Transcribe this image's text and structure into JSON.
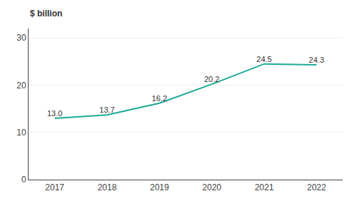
{
  "chart_data": {
    "type": "line",
    "ylabel": "$ billion",
    "x": [
      2017,
      2018,
      2019,
      2020,
      2021,
      2022
    ],
    "values": [
      13.0,
      13.7,
      16.2,
      20.2,
      24.5,
      24.3
    ],
    "value_labels": [
      "13.0",
      "13.7",
      "16.2",
      "20.2",
      "24.5",
      "24.3"
    ],
    "color": "#1aaa96",
    "xlim": [
      2016.5,
      2022.5
    ],
    "xticks": [
      2017,
      2018,
      2019,
      2020,
      2021,
      2022
    ],
    "ylim": [
      0,
      32
    ],
    "yticks": [
      0,
      10,
      20,
      30
    ],
    "grid": true,
    "data_labels": true
  }
}
